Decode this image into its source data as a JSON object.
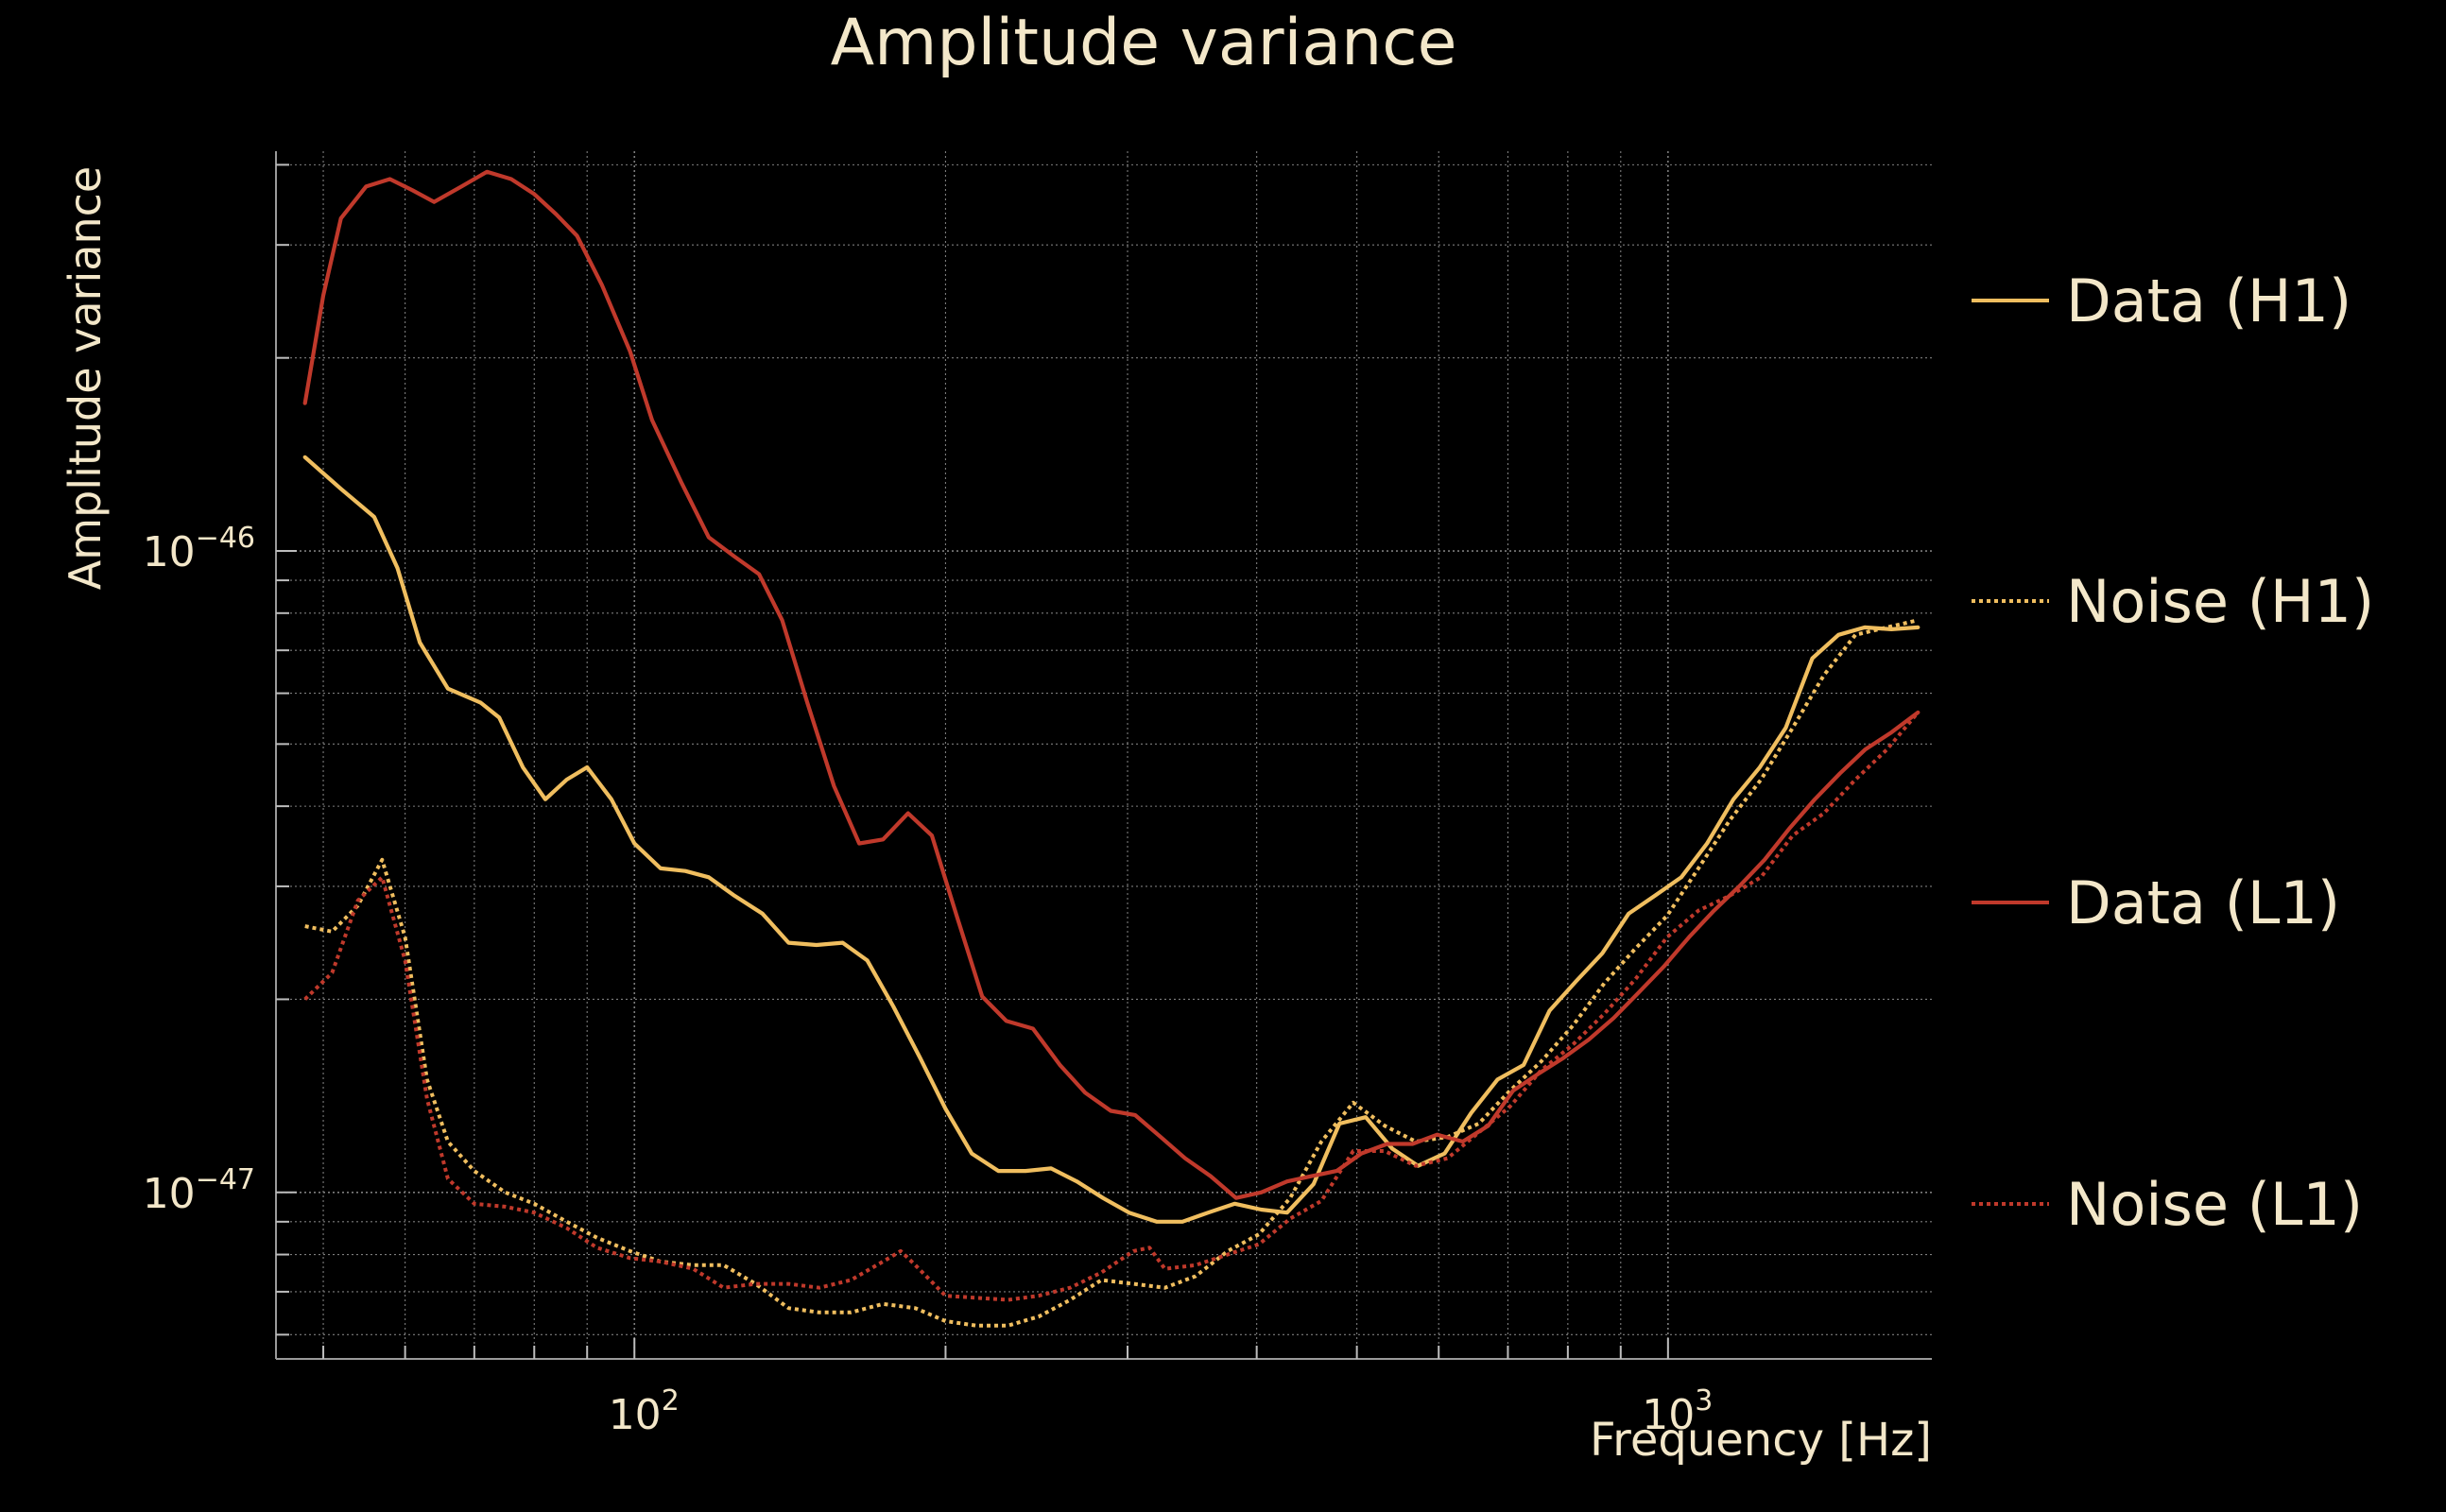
{
  "chart_data": {
    "type": "line",
    "title": "Amplitude variance",
    "xlabel": "Frequency [Hz]",
    "ylabel": "Amplitude variance",
    "x_scale": "log",
    "y_scale": "log",
    "xlim": [
      45,
      1800
    ],
    "ylim": [
      5.5e-48,
      4.2e-46
    ],
    "grid": true,
    "legend_position": "right",
    "x_ticks": [
      {
        "value": 100,
        "base": "10",
        "exp": "2"
      },
      {
        "value": 1000,
        "base": "10",
        "exp": "3"
      }
    ],
    "y_ticks": [
      {
        "value": 1e-46,
        "base": "10",
        "exp": "−46"
      },
      {
        "value": 1e-47,
        "base": "10",
        "exp": "−47"
      }
    ],
    "series": [
      {
        "name": "Data (H1)",
        "color": "#f0be5f",
        "dash": "solid",
        "x": [
          48,
          52,
          56,
          59,
          62,
          66,
          71,
          74,
          78,
          82,
          86,
          90,
          95,
          100,
          106,
          112,
          118,
          125,
          133,
          141,
          150,
          159,
          168,
          178,
          189,
          200,
          212,
          225,
          239,
          253,
          268,
          284,
          301,
          320,
          339,
          359,
          381,
          404,
          428,
          454,
          481,
          510,
          541,
          573,
          608,
          645,
          684,
          725,
          768,
          814,
          864,
          916,
          971,
          1030,
          1091,
          1157,
          1227,
          1300,
          1379,
          1462,
          1550,
          1645,
          1745
        ],
        "y": [
          1.4e-46,
          1.25e-46,
          1.13e-46,
          9.4e-47,
          7.2e-47,
          6.1e-47,
          5.8e-47,
          5.5e-47,
          4.6e-47,
          4.1e-47,
          4.4e-47,
          4.6e-47,
          4.1e-47,
          3.5e-47,
          3.2e-47,
          3.17e-47,
          3.1e-47,
          2.9e-47,
          2.72e-47,
          2.45e-47,
          2.43e-47,
          2.45e-47,
          2.3e-47,
          1.95e-47,
          1.62e-47,
          1.35e-47,
          1.15e-47,
          1.08e-47,
          1.08e-47,
          1.09e-47,
          1.04e-47,
          9.8e-48,
          9.3e-48,
          9e-48,
          9e-48,
          9.3e-48,
          9.6e-48,
          9.4e-48,
          9.3e-48,
          1.03e-47,
          1.28e-47,
          1.31e-47,
          1.17e-47,
          1.1e-47,
          1.15e-47,
          1.33e-47,
          1.5e-47,
          1.58e-47,
          1.92e-47,
          2.13e-47,
          2.36e-47,
          2.72e-47,
          2.9e-47,
          3.1e-47,
          3.5e-47,
          4.1e-47,
          4.6e-47,
          5.3e-47,
          6.8e-47,
          7.4e-47,
          7.6e-47,
          7.55e-47,
          7.6e-47
        ]
      },
      {
        "name": "Noise (H1)",
        "color": "#f0be5f",
        "dash": "dotted",
        "x": [
          48,
          51,
          54,
          57,
          60,
          63,
          66,
          70,
          75,
          80,
          86,
          92,
          99,
          106,
          114,
          122,
          131,
          141,
          151,
          162,
          174,
          187,
          200,
          214,
          230,
          246,
          264,
          283,
          304,
          326,
          349,
          375,
          402,
          431,
          462,
          496,
          532,
          570,
          612,
          656,
          703,
          754,
          809,
          868,
          930,
          998,
          1070,
          1147,
          1230,
          1320,
          1415,
          1518,
          1628,
          1745
        ],
        "y": [
          2.6e-47,
          2.55e-47,
          2.8e-47,
          3.3e-47,
          2.5e-47,
          1.5e-47,
          1.2e-47,
          1.08e-47,
          1e-47,
          9.6e-48,
          9e-48,
          8.5e-48,
          8.1e-48,
          7.8e-48,
          7.7e-48,
          7.7e-48,
          7.2e-48,
          6.6e-48,
          6.5e-48,
          6.5e-48,
          6.7e-48,
          6.6e-48,
          6.3e-48,
          6.2e-48,
          6.2e-48,
          6.4e-48,
          6.8e-48,
          7.3e-48,
          7.2e-48,
          7.1e-48,
          7.4e-48,
          8.1e-48,
          8.6e-48,
          9.8e-48,
          1.2e-47,
          1.38e-47,
          1.27e-47,
          1.2e-47,
          1.22e-47,
          1.28e-47,
          1.44e-47,
          1.6e-47,
          1.82e-47,
          2.12e-47,
          2.4e-47,
          2.7e-47,
          3.2e-47,
          3.8e-47,
          4.4e-47,
          5.3e-47,
          6.4e-47,
          7.4e-47,
          7.6e-47,
          7.8e-47
        ]
      },
      {
        "name": "Data (L1)",
        "color": "#c0392b",
        "dash": "solid",
        "x": [
          48,
          50,
          52,
          55,
          58,
          61,
          64,
          68,
          72,
          76,
          80,
          84,
          88,
          93,
          99,
          104,
          111,
          118,
          125,
          132,
          139,
          147,
          156,
          165,
          174,
          184,
          194,
          205,
          217,
          229,
          243,
          258,
          273,
          289,
          305,
          323,
          341,
          361,
          382,
          404,
          428,
          452,
          478,
          505,
          535,
          566,
          598,
          633,
          670,
          708,
          749,
          792,
          838,
          886,
          937,
          991,
          1048,
          1108,
          1172,
          1240,
          1312,
          1387,
          1467,
          1551,
          1641,
          1745
        ],
        "y": [
          1.7e-46,
          2.5e-46,
          3.3e-46,
          3.7e-46,
          3.8e-46,
          3.65e-46,
          3.5e-46,
          3.7e-46,
          3.9e-46,
          3.8e-46,
          3.6e-46,
          3.35e-46,
          3.1e-46,
          2.6e-46,
          2.05e-46,
          1.6e-46,
          1.28e-46,
          1.05e-46,
          9.8e-47,
          9.2e-47,
          7.8e-47,
          5.8e-47,
          4.3e-47,
          3.5e-47,
          3.55e-47,
          3.9e-47,
          3.6e-47,
          2.7e-47,
          2.02e-47,
          1.85e-47,
          1.8e-47,
          1.58e-47,
          1.43e-47,
          1.34e-47,
          1.32e-47,
          1.22e-47,
          1.13e-47,
          1.06e-47,
          9.8e-48,
          1e-47,
          1.04e-47,
          1.06e-47,
          1.08e-47,
          1.15e-47,
          1.19e-47,
          1.19e-47,
          1.23e-47,
          1.2e-47,
          1.27e-47,
          1.44e-47,
          1.53e-47,
          1.62e-47,
          1.73e-47,
          1.87e-47,
          2.05e-47,
          2.25e-47,
          2.5e-47,
          2.75e-47,
          3e-47,
          3.3e-47,
          3.7e-47,
          4.1e-47,
          4.5e-47,
          4.9e-47,
          5.2e-47,
          5.6e-47
        ]
      },
      {
        "name": "Noise (L1)",
        "color": "#c0392b",
        "dash": "dotted",
        "x": [
          48,
          51,
          54,
          57,
          60,
          63,
          66,
          70,
          75,
          80,
          86,
          92,
          99,
          106,
          114,
          122,
          131,
          141,
          151,
          162,
          174,
          181,
          187,
          200,
          214,
          230,
          246,
          264,
          283,
          304,
          315,
          326,
          349,
          375,
          402,
          431,
          462,
          496,
          532,
          570,
          612,
          656,
          703,
          754,
          809,
          868,
          930,
          998,
          1070,
          1147,
          1230,
          1320,
          1415,
          1518,
          1628,
          1745
        ],
        "y": [
          2e-47,
          2.2e-47,
          2.85e-47,
          3.1e-47,
          2.3e-47,
          1.4e-47,
          1.05e-47,
          9.6e-48,
          9.5e-48,
          9.3e-48,
          8.8e-48,
          8.2e-48,
          7.9e-48,
          7.8e-48,
          7.6e-48,
          7.1e-48,
          7.2e-48,
          7.2e-48,
          7.1e-48,
          7.3e-48,
          7.8e-48,
          8.1e-48,
          7.7e-48,
          6.9e-48,
          6.85e-48,
          6.8e-48,
          6.9e-48,
          7.1e-48,
          7.5e-48,
          8.1e-48,
          8.2e-48,
          7.6e-48,
          7.7e-48,
          8e-48,
          8.3e-48,
          9.1e-48,
          9.7e-48,
          1.16e-47,
          1.16e-47,
          1.1e-47,
          1.13e-47,
          1.24e-47,
          1.36e-47,
          1.55e-47,
          1.7e-47,
          1.9e-47,
          2.15e-47,
          2.5e-47,
          2.75e-47,
          2.9e-47,
          3.1e-47,
          3.6e-47,
          3.9e-47,
          4.4e-47,
          4.9e-47,
          5.6e-47
        ]
      }
    ]
  }
}
